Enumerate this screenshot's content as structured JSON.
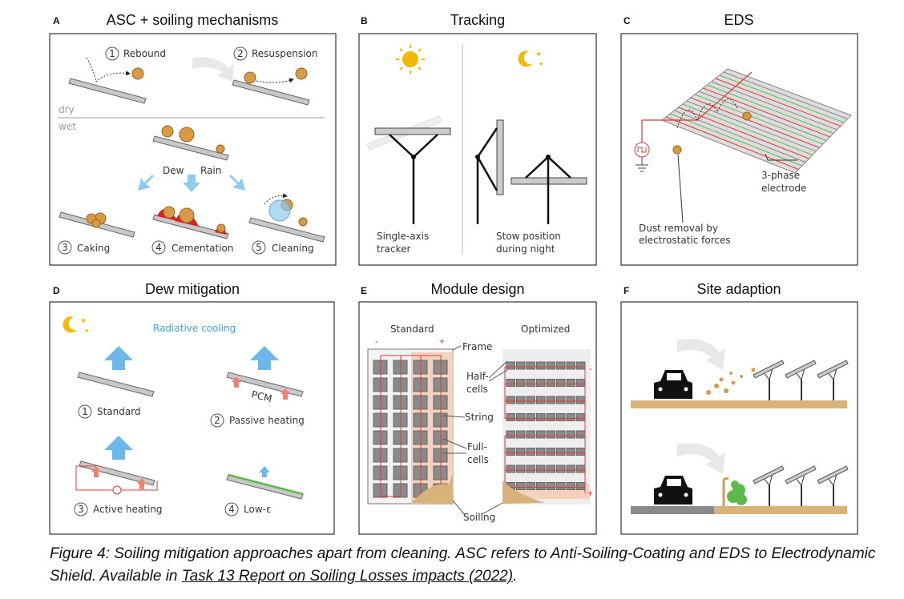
{
  "panels": {
    "A": {
      "letter": "A",
      "title": "ASC + soiling mechanisms",
      "steps": [
        {
          "n": "1",
          "label": "Rebound"
        },
        {
          "n": "2",
          "label": "Resuspension"
        },
        {
          "n": "3",
          "label": "Caking"
        },
        {
          "n": "4",
          "label": "Cementation"
        },
        {
          "n": "5",
          "label": "Cleaning"
        }
      ],
      "dry": "dry",
      "wet": "wet",
      "dew": "Dew",
      "rain": "Rain"
    },
    "B": {
      "letter": "B",
      "title": "Tracking",
      "left_label": [
        "Single-axis",
        "tracker"
      ],
      "right_label": [
        "Stow position",
        "during night"
      ]
    },
    "C": {
      "letter": "C",
      "title": "EDS",
      "electrode_label": [
        "3-phase",
        "electrode"
      ],
      "dust_label": [
        "Dust removal by",
        "electrostatic forces"
      ]
    },
    "D": {
      "letter": "D",
      "title": "Dew mitigation",
      "radiative": "Radiative cooling",
      "steps": [
        {
          "n": "1",
          "label": "Standard"
        },
        {
          "n": "2",
          "label": "Passive heating"
        },
        {
          "n": "3",
          "label": "Active heating"
        },
        {
          "n": "4",
          "label": "Low-ε"
        }
      ],
      "pcm": "PCM"
    },
    "E": {
      "letter": "E",
      "title": "Module design",
      "standard": "Standard",
      "optimized": "Optimized",
      "frame": "Frame",
      "half_cells": [
        "Half-",
        "cells"
      ],
      "string": "String",
      "full_cells": [
        "Full-",
        "cells"
      ],
      "soiling": "Soiling",
      "minus": "-",
      "plus": "+"
    },
    "F": {
      "letter": "F",
      "title": "Site adaption"
    }
  },
  "colors": {
    "dust": "#d79a45",
    "arrow_blue": "#8ecbef",
    "wire_red": "#e03a3a",
    "soil": "#d9b27a",
    "hedge": "#5fb84a",
    "radiative_text": "#3aa0e0"
  },
  "caption": {
    "text": "Figure 4: Soiling mitigation approaches apart from cleaning. ASC refers to Anti-Soiling-Coating and EDS to Electrodynamic Shield. Available in ",
    "link": "Task 13 Report on Soiling Losses impacts (2022)",
    "end": "."
  }
}
